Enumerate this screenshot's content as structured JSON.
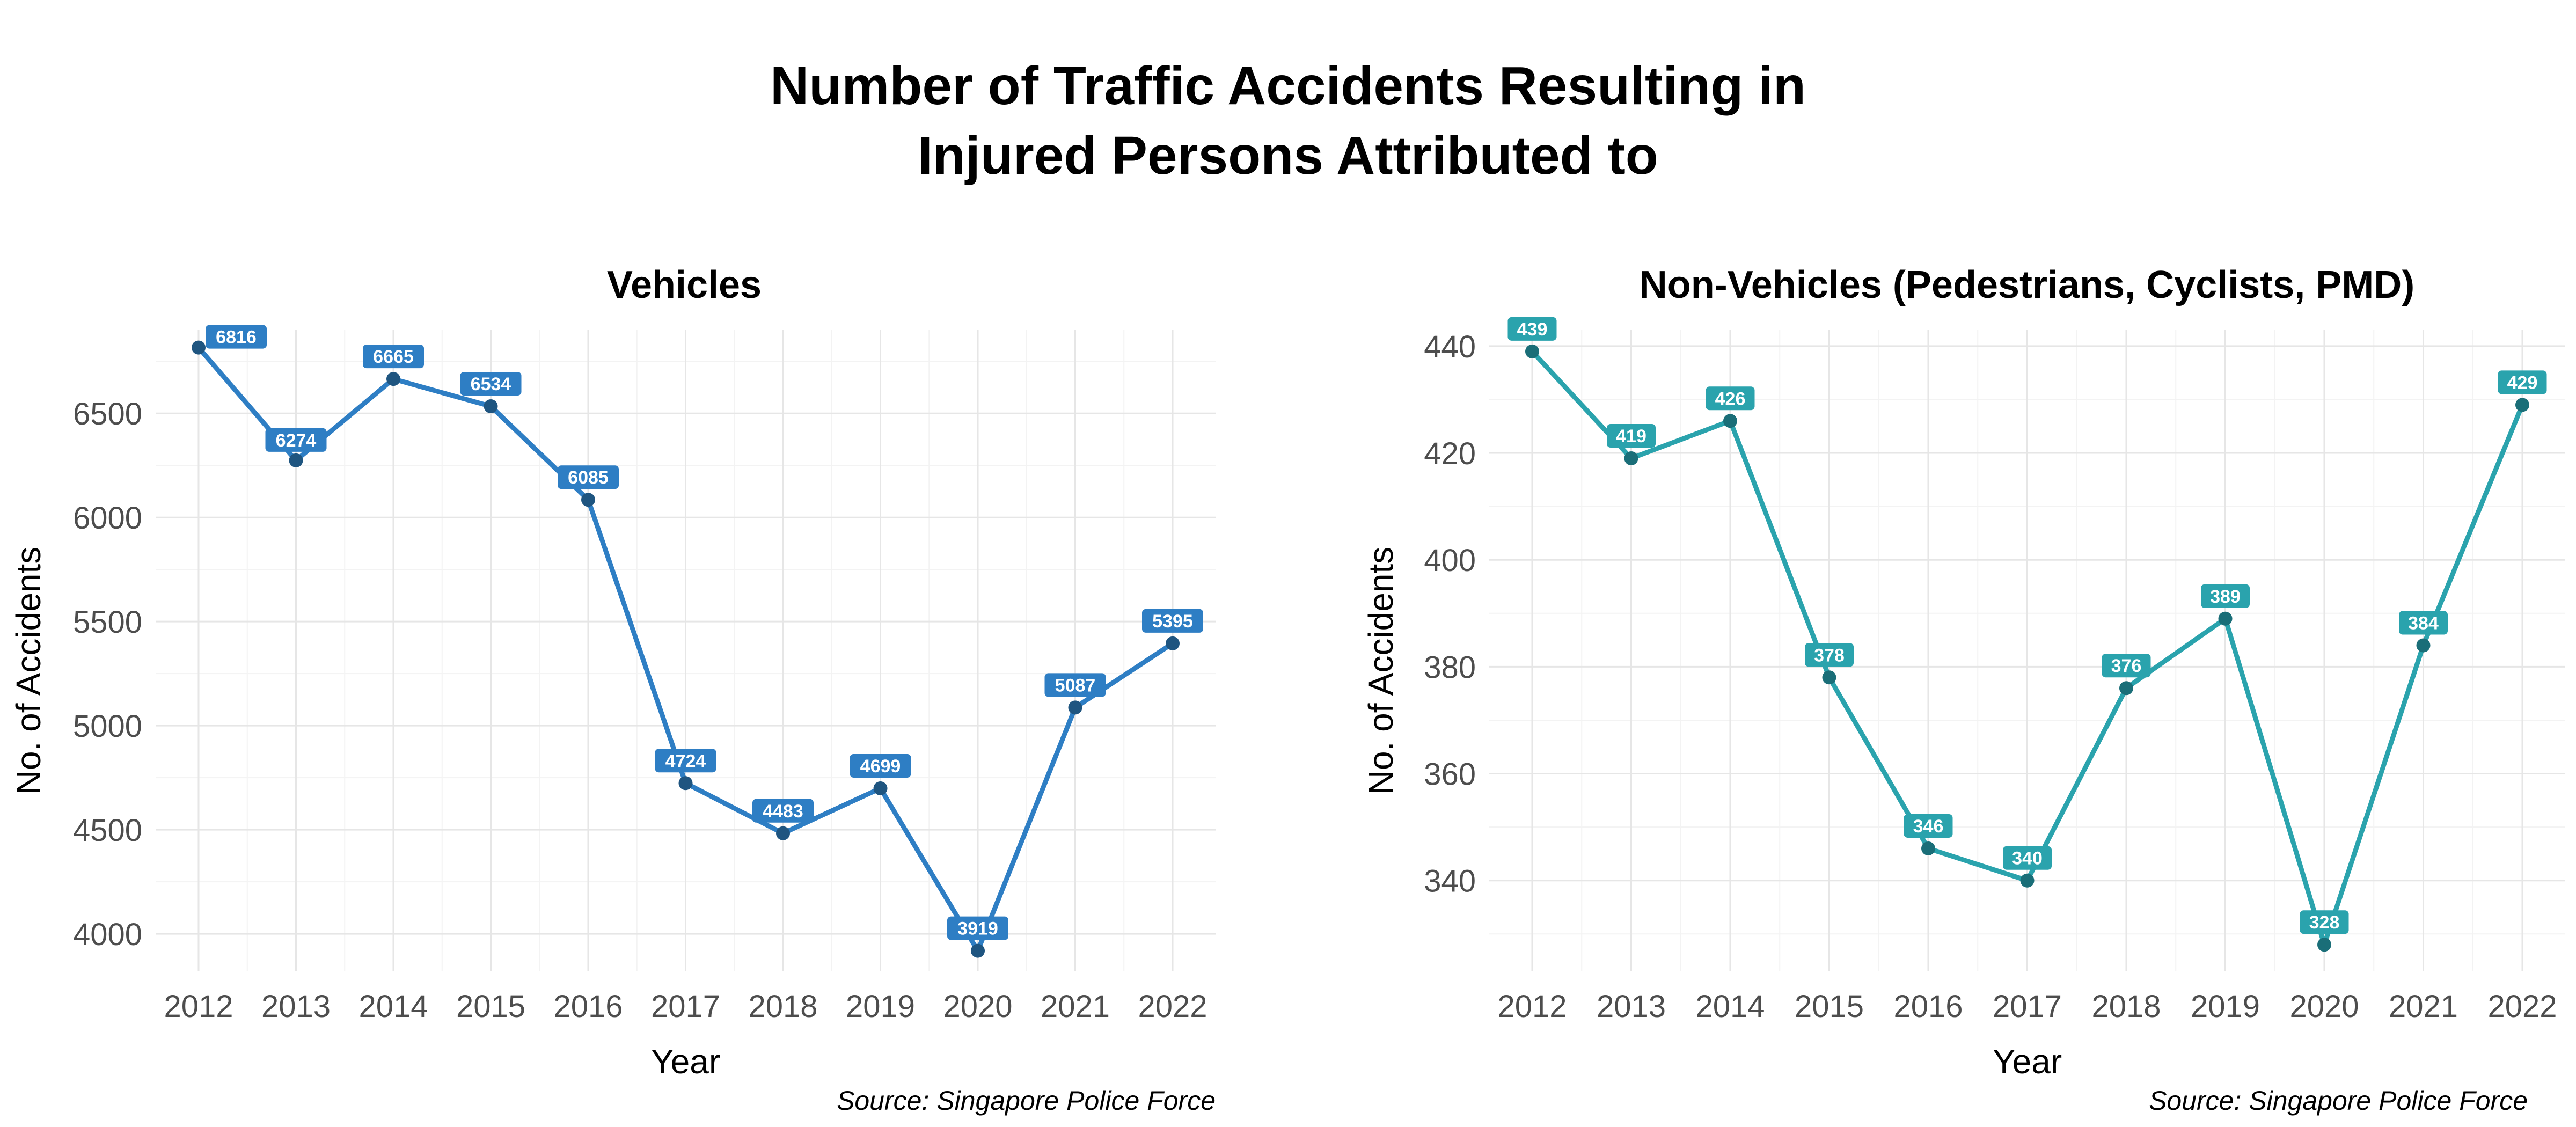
{
  "title": {
    "line1": "Number of Traffic Accidents Resulting in",
    "line2": "Injured Persons Attributed to"
  },
  "chart_data": [
    {
      "type": "line",
      "title": "Vehicles",
      "xlabel": "Year",
      "ylabel": "No. of Accidents",
      "caption": "Source: Singapore Police Force",
      "x": [
        2012,
        2013,
        2014,
        2015,
        2016,
        2017,
        2018,
        2019,
        2020,
        2021,
        2022
      ],
      "values": [
        6816,
        6274,
        6665,
        6534,
        6085,
        4724,
        4483,
        4699,
        3919,
        5087,
        5395
      ],
      "yticks": [
        4000,
        4500,
        5000,
        5500,
        6000,
        6500
      ],
      "ylim": [
        3820,
        6900
      ],
      "grid": true,
      "color": "#2e7ec4",
      "point_color": "#1f5580",
      "label_color": "#2e7ec4"
    },
    {
      "type": "line",
      "title": "Non-Vehicles (Pedestrians, Cyclists, PMD)",
      "xlabel": "Year",
      "ylabel": "No. of Accidents",
      "caption": "Source: Singapore Police Force",
      "x": [
        2012,
        2013,
        2014,
        2015,
        2016,
        2017,
        2018,
        2019,
        2020,
        2021,
        2022
      ],
      "values": [
        439,
        419,
        426,
        378,
        346,
        340,
        376,
        389,
        328,
        384,
        429
      ],
      "yticks": [
        340,
        360,
        380,
        400,
        420,
        440
      ],
      "ylim": [
        323,
        443
      ],
      "grid": true,
      "color": "#2aa3ad",
      "point_color": "#1a6e78",
      "label_color": "#2aa3ad"
    }
  ]
}
